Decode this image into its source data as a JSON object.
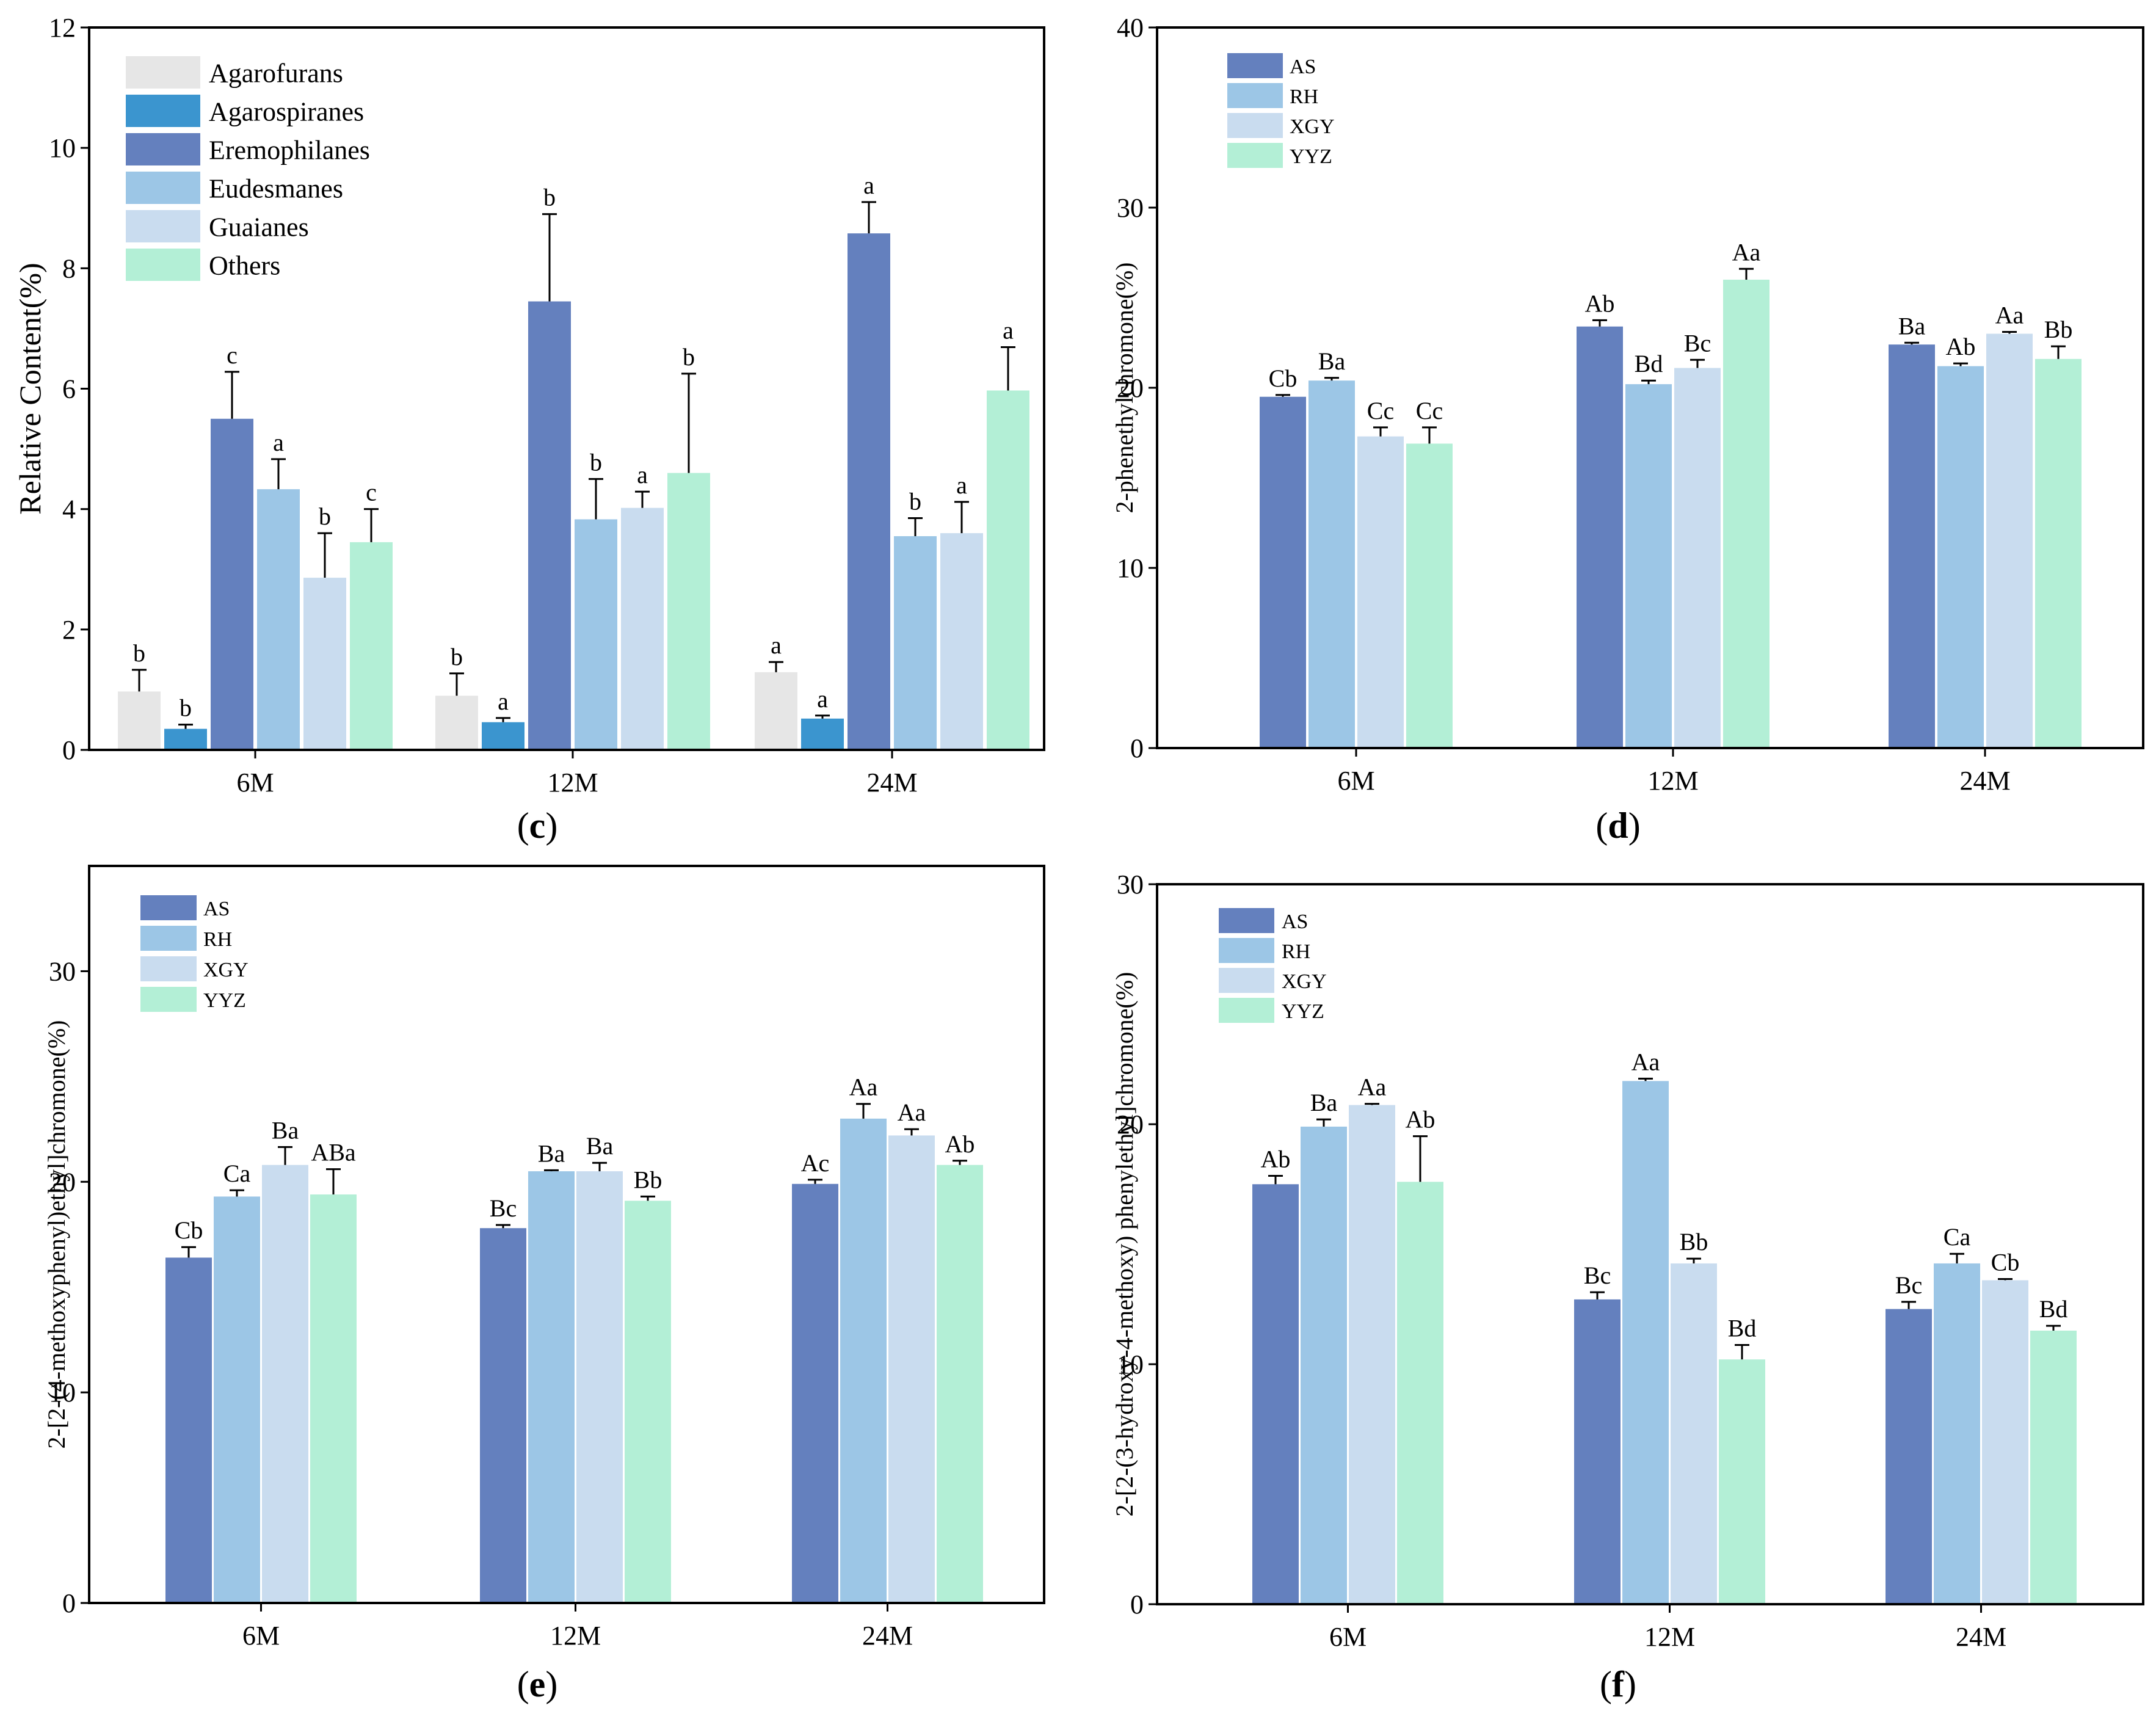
{
  "chart_data": [
    {
      "id": "c",
      "type": "bar",
      "panel_label": "c",
      "title": "",
      "xlabel": "",
      "ylabel": "Relative Content(%)",
      "ylim": [
        0,
        12
      ],
      "yticks": [
        0,
        2,
        4,
        6,
        8,
        10,
        12
      ],
      "categories": [
        "6M",
        "12M",
        "24M"
      ],
      "legend_placement": "top-left",
      "series": [
        {
          "name": "Agarofurans",
          "color": "#e6e6e6",
          "values": [
            0.97,
            0.9,
            1.29
          ],
          "errors": [
            0.36,
            0.37,
            0.17
          ],
          "labels": [
            "b",
            "b",
            "a"
          ]
        },
        {
          "name": "Agarospiranes",
          "color": "#3b95cf",
          "values": [
            0.35,
            0.46,
            0.52
          ],
          "errors": [
            0.07,
            0.07,
            0.05
          ],
          "labels": [
            "b",
            "a",
            "a"
          ]
        },
        {
          "name": "Eremophilanes",
          "color": "#6480be",
          "values": [
            5.5,
            7.45,
            8.58
          ],
          "errors": [
            0.78,
            1.45,
            0.52
          ],
          "labels": [
            "c",
            "b",
            "a"
          ]
        },
        {
          "name": "Eudesmanes",
          "color": "#9cc6e6",
          "values": [
            4.33,
            3.83,
            3.55
          ],
          "errors": [
            0.5,
            0.67,
            0.3
          ],
          "labels": [
            "a",
            "b",
            "b"
          ]
        },
        {
          "name": "Guaianes",
          "color": "#c9dcef",
          "values": [
            2.86,
            4.02,
            3.6
          ],
          "errors": [
            0.74,
            0.27,
            0.52
          ],
          "labels": [
            "b",
            "a",
            "a"
          ]
        },
        {
          "name": "Others",
          "color": "#b3efd6",
          "values": [
            3.45,
            4.6,
            5.97
          ],
          "errors": [
            0.55,
            1.65,
            0.72
          ],
          "labels": [
            "c",
            "b",
            "a"
          ]
        }
      ]
    },
    {
      "id": "d",
      "type": "bar",
      "panel_label": "d",
      "title": "",
      "xlabel": "",
      "ylabel": "2-phenethylchromone(%)",
      "ylim": [
        0,
        40
      ],
      "yticks": [
        0,
        10,
        20,
        30,
        40
      ],
      "categories": [
        "6M",
        "12M",
        "24M"
      ],
      "legend_placement": "top-left",
      "series": [
        {
          "name": "AS",
          "color": "#6480be",
          "values": [
            19.5,
            23.4,
            22.4
          ],
          "errors": [
            0.1,
            0.35,
            0.1
          ],
          "labels": [
            "Cb",
            "Ab",
            "Ba"
          ]
        },
        {
          "name": "RH",
          "color": "#9cc6e6",
          "values": [
            20.4,
            20.2,
            21.2
          ],
          "errors": [
            0.15,
            0.2,
            0.15
          ],
          "labels": [
            "Ba",
            "Bd",
            "Ab"
          ]
        },
        {
          "name": "XGY",
          "color": "#c9dcef",
          "values": [
            17.3,
            21.1,
            23.0
          ],
          "errors": [
            0.5,
            0.45,
            0.1
          ],
          "labels": [
            "Cc",
            "Bc",
            "Aa"
          ]
        },
        {
          "name": "YYZ",
          "color": "#b3efd6",
          "values": [
            16.9,
            26.0,
            21.6
          ],
          "errors": [
            0.9,
            0.6,
            0.7
          ],
          "labels": [
            "Cc",
            "Aa",
            "Bb"
          ]
        }
      ]
    },
    {
      "id": "e",
      "type": "bar",
      "panel_label": "e",
      "title": "",
      "xlabel": "",
      "ylabel": "2-[2-(4-methoxyphenyl)ethyl]chromone(%)",
      "ylim": [
        0,
        35
      ],
      "yticks": [
        0,
        10,
        20,
        30
      ],
      "categories": [
        "6M",
        "12M",
        "24M"
      ],
      "legend_placement": "top-left",
      "series": [
        {
          "name": "AS",
          "color": "#6480be",
          "values": [
            16.4,
            17.8,
            19.9
          ],
          "errors": [
            0.5,
            0.15,
            0.2
          ],
          "labels": [
            "Cb",
            "Bc",
            "Ac"
          ]
        },
        {
          "name": "RH",
          "color": "#9cc6e6",
          "values": [
            19.3,
            20.5,
            23.0
          ],
          "errors": [
            0.3,
            0.05,
            0.7
          ],
          "labels": [
            "Ca",
            "Ba",
            "Aa"
          ]
        },
        {
          "name": "XGY",
          "color": "#c9dcef",
          "values": [
            20.8,
            20.5,
            22.2
          ],
          "errors": [
            0.85,
            0.4,
            0.3
          ],
          "labels": [
            "Ba",
            "Ba",
            "Aa"
          ]
        },
        {
          "name": "YYZ",
          "color": "#b3efd6",
          "values": [
            19.4,
            19.1,
            20.8
          ],
          "errors": [
            1.2,
            0.2,
            0.2
          ],
          "labels": [
            "ABa",
            "Bb",
            "Ab"
          ]
        }
      ]
    },
    {
      "id": "f",
      "type": "bar",
      "panel_label": "f",
      "title": "",
      "xlabel": "",
      "ylabel": "2-[2-(3-hydroxy-4-methoxy) phenylethyl]chromone(%)",
      "ylim": [
        0,
        30
      ],
      "yticks": [
        0,
        10,
        20,
        30
      ],
      "categories": [
        "6M",
        "12M",
        "24M"
      ],
      "legend_placement": "top-left",
      "series": [
        {
          "name": "AS",
          "color": "#6480be",
          "values": [
            17.5,
            12.7,
            12.3
          ],
          "errors": [
            0.35,
            0.3,
            0.3
          ],
          "labels": [
            "Ab",
            "Bc",
            "Bc"
          ]
        },
        {
          "name": "RH",
          "color": "#9cc6e6",
          "values": [
            19.9,
            21.8,
            14.2
          ],
          "errors": [
            0.3,
            0.1,
            0.4
          ],
          "labels": [
            "Ba",
            "Aa",
            "Ca"
          ]
        },
        {
          "name": "XGY",
          "color": "#c9dcef",
          "values": [
            20.8,
            14.2,
            13.5
          ],
          "errors": [
            0.05,
            0.2,
            0.05
          ],
          "labels": [
            "Aa",
            "Bb",
            "Cb"
          ]
        },
        {
          "name": "YYZ",
          "color": "#b3efd6",
          "values": [
            17.6,
            10.2,
            11.4
          ],
          "errors": [
            1.9,
            0.6,
            0.2
          ],
          "labels": [
            "Ab",
            "Bd",
            "Bd"
          ]
        }
      ]
    }
  ]
}
